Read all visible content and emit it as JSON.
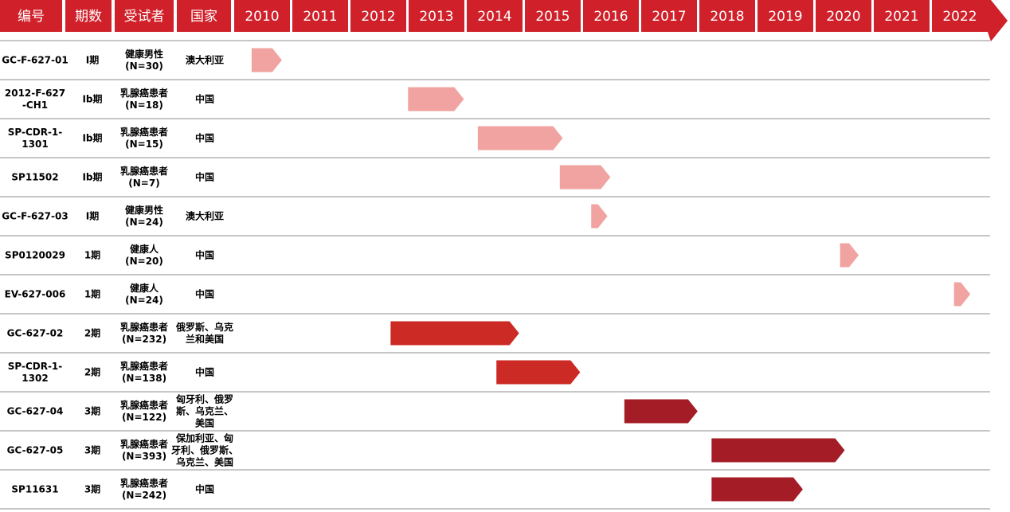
{
  "colors": {
    "header_bg": "#d0202a",
    "header_text": "#ffffff",
    "phase1": "#f0a3a0",
    "phase2": "#cc2a24",
    "phase3": "#a31c26",
    "row_line": "#8c8c8c",
    "text": "#000000"
  },
  "chart_data": {
    "type": "gantt-timeline",
    "columns": [
      "编号",
      "期数",
      "受试者",
      "国家"
    ],
    "years": [
      "2010",
      "2011",
      "2012",
      "2013",
      "2014",
      "2015",
      "2016",
      "2017",
      "2018",
      "2019",
      "2020",
      "2021",
      "2022"
    ],
    "rows": [
      {
        "id": [
          "GC-F-627-01"
        ],
        "phase": "I期",
        "subjects": [
          "健康男性",
          "(N=30)"
        ],
        "country": [
          "澳大利亚"
        ],
        "start": 2010.3,
        "end": 2010.82,
        "phase_group": 1
      },
      {
        "id": [
          "2012-F-627",
          "-CH1"
        ],
        "phase": "Ib期",
        "subjects": [
          "乳腺癌患者",
          "(N=18)"
        ],
        "country": [
          "中国"
        ],
        "start": 2012.99,
        "end": 2013.95,
        "phase_group": 1
      },
      {
        "id": [
          "SP-CDR-1-",
          "1301"
        ],
        "phase": "Ib期",
        "subjects": [
          "乳腺癌患者",
          "(N=15)"
        ],
        "country": [
          "中国"
        ],
        "start": 2014.19,
        "end": 2015.65,
        "phase_group": 1
      },
      {
        "id": [
          "SP11502"
        ],
        "phase": "Ib期",
        "subjects": [
          "乳腺癌患者",
          "(N=7)"
        ],
        "country": [
          "中国"
        ],
        "start": 2015.6,
        "end": 2016.47,
        "phase_group": 1
      },
      {
        "id": [
          "GC-F-627-03"
        ],
        "phase": "I期",
        "subjects": [
          "健康男性",
          "(N=24)"
        ],
        "country": [
          "澳大利亚"
        ],
        "start": 2016.14,
        "end": 2016.42,
        "phase_group": 1
      },
      {
        "id": [
          "SP0120029"
        ],
        "phase": "1期",
        "subjects": [
          "健康人",
          "(N=20)"
        ],
        "country": [
          "中国"
        ],
        "start": 2020.42,
        "end": 2020.74,
        "phase_group": 1
      },
      {
        "id": [
          "EV-627-006"
        ],
        "phase": "1期",
        "subjects": [
          "健康人",
          "(N=24)"
        ],
        "country": [
          "中国"
        ],
        "start": 2022.38,
        "end": 2022.66,
        "phase_group": 1
      },
      {
        "id": [
          "GC-627-02"
        ],
        "phase": "2期",
        "subjects": [
          "乳腺癌患者",
          "(N=232)"
        ],
        "country": [
          "俄罗斯、乌克",
          "兰和美国"
        ],
        "start": 2012.69,
        "end": 2014.9,
        "phase_group": 2
      },
      {
        "id": [
          "SP-CDR-1-",
          "1302"
        ],
        "phase": "2期",
        "subjects": [
          "乳腺癌患者",
          "(N=138)"
        ],
        "country": [
          "中国"
        ],
        "start": 2014.51,
        "end": 2015.95,
        "phase_group": 2
      },
      {
        "id": [
          "GC-627-04"
        ],
        "phase": "3期",
        "subjects": [
          "乳腺癌患者",
          "(N=122)"
        ],
        "country": [
          "匈牙利、俄罗",
          "斯、乌克兰、",
          "美国"
        ],
        "start": 2016.71,
        "end": 2017.97,
        "phase_group": 3
      },
      {
        "id": [
          "GC-627-05"
        ],
        "phase": "3期",
        "subjects": [
          "乳腺癌患者",
          "(N=393)"
        ],
        "country": [
          "保加利亚、匈",
          "牙利、俄罗斯、",
          "乌克兰、美国"
        ],
        "start": 2018.21,
        "end": 2020.5,
        "phase_group": 3
      },
      {
        "id": [
          "SP11631"
        ],
        "phase": "3期",
        "subjects": [
          "乳腺癌患者",
          "(N=242)"
        ],
        "country": [
          "中国"
        ],
        "start": 2018.21,
        "end": 2019.78,
        "phase_group": 3
      }
    ]
  }
}
